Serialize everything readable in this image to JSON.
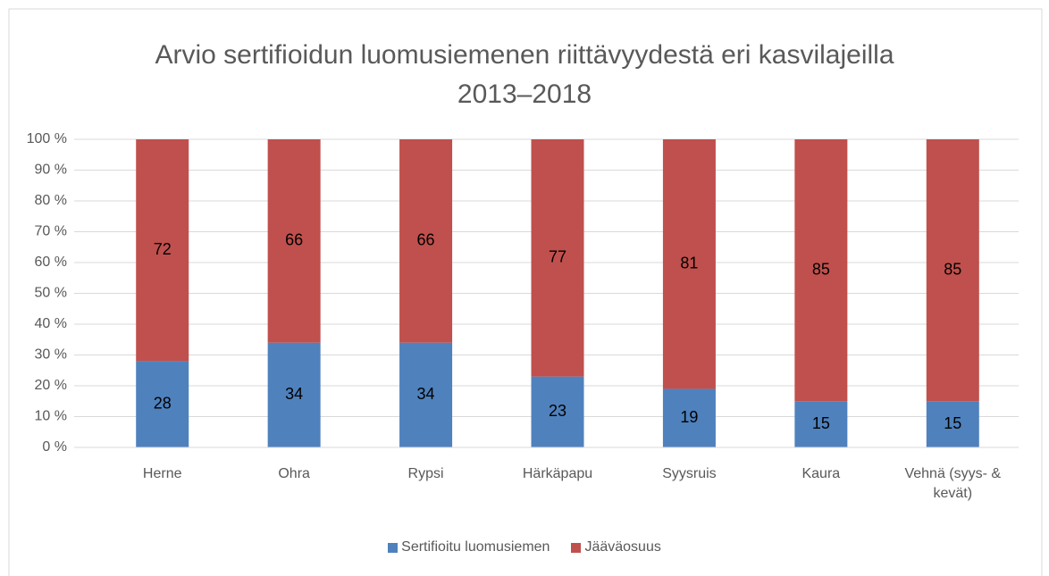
{
  "chart_data": {
    "type": "stacked_bar",
    "title": "Arvio sertifioidun luomusiemenen riittävyydestä eri kasvilajeilla 2013–2018",
    "categories": [
      "Herne",
      "Ohra",
      "Rypsi",
      "Härkäpapu",
      "Syysruis",
      "Kaura",
      "Vehnä (syys- & kevät)"
    ],
    "series": [
      {
        "name": "Sertifioitu luomusiemen",
        "color": "#4f81bd",
        "values": [
          28,
          34,
          34,
          23,
          19,
          15,
          15
        ]
      },
      {
        "name": "Jääväosuus",
        "color": "#c0504d",
        "values": [
          72,
          66,
          66,
          77,
          81,
          85,
          85
        ]
      }
    ],
    "ylim": [
      0,
      100
    ],
    "yticks": [
      {
        "value": 0,
        "label": "0 %"
      },
      {
        "value": 10,
        "label": "10 %"
      },
      {
        "value": 20,
        "label": "20 %"
      },
      {
        "value": 30,
        "label": "30 %"
      },
      {
        "value": 40,
        "label": "40 %"
      },
      {
        "value": 50,
        "label": "50 %"
      },
      {
        "value": 60,
        "label": "60 %"
      },
      {
        "value": 70,
        "label": "70 %"
      },
      {
        "value": 80,
        "label": "80 %"
      },
      {
        "value": 90,
        "label": "90 %"
      },
      {
        "value": 100,
        "label": "100 %"
      }
    ],
    "grid": true,
    "legend": "bottom"
  }
}
